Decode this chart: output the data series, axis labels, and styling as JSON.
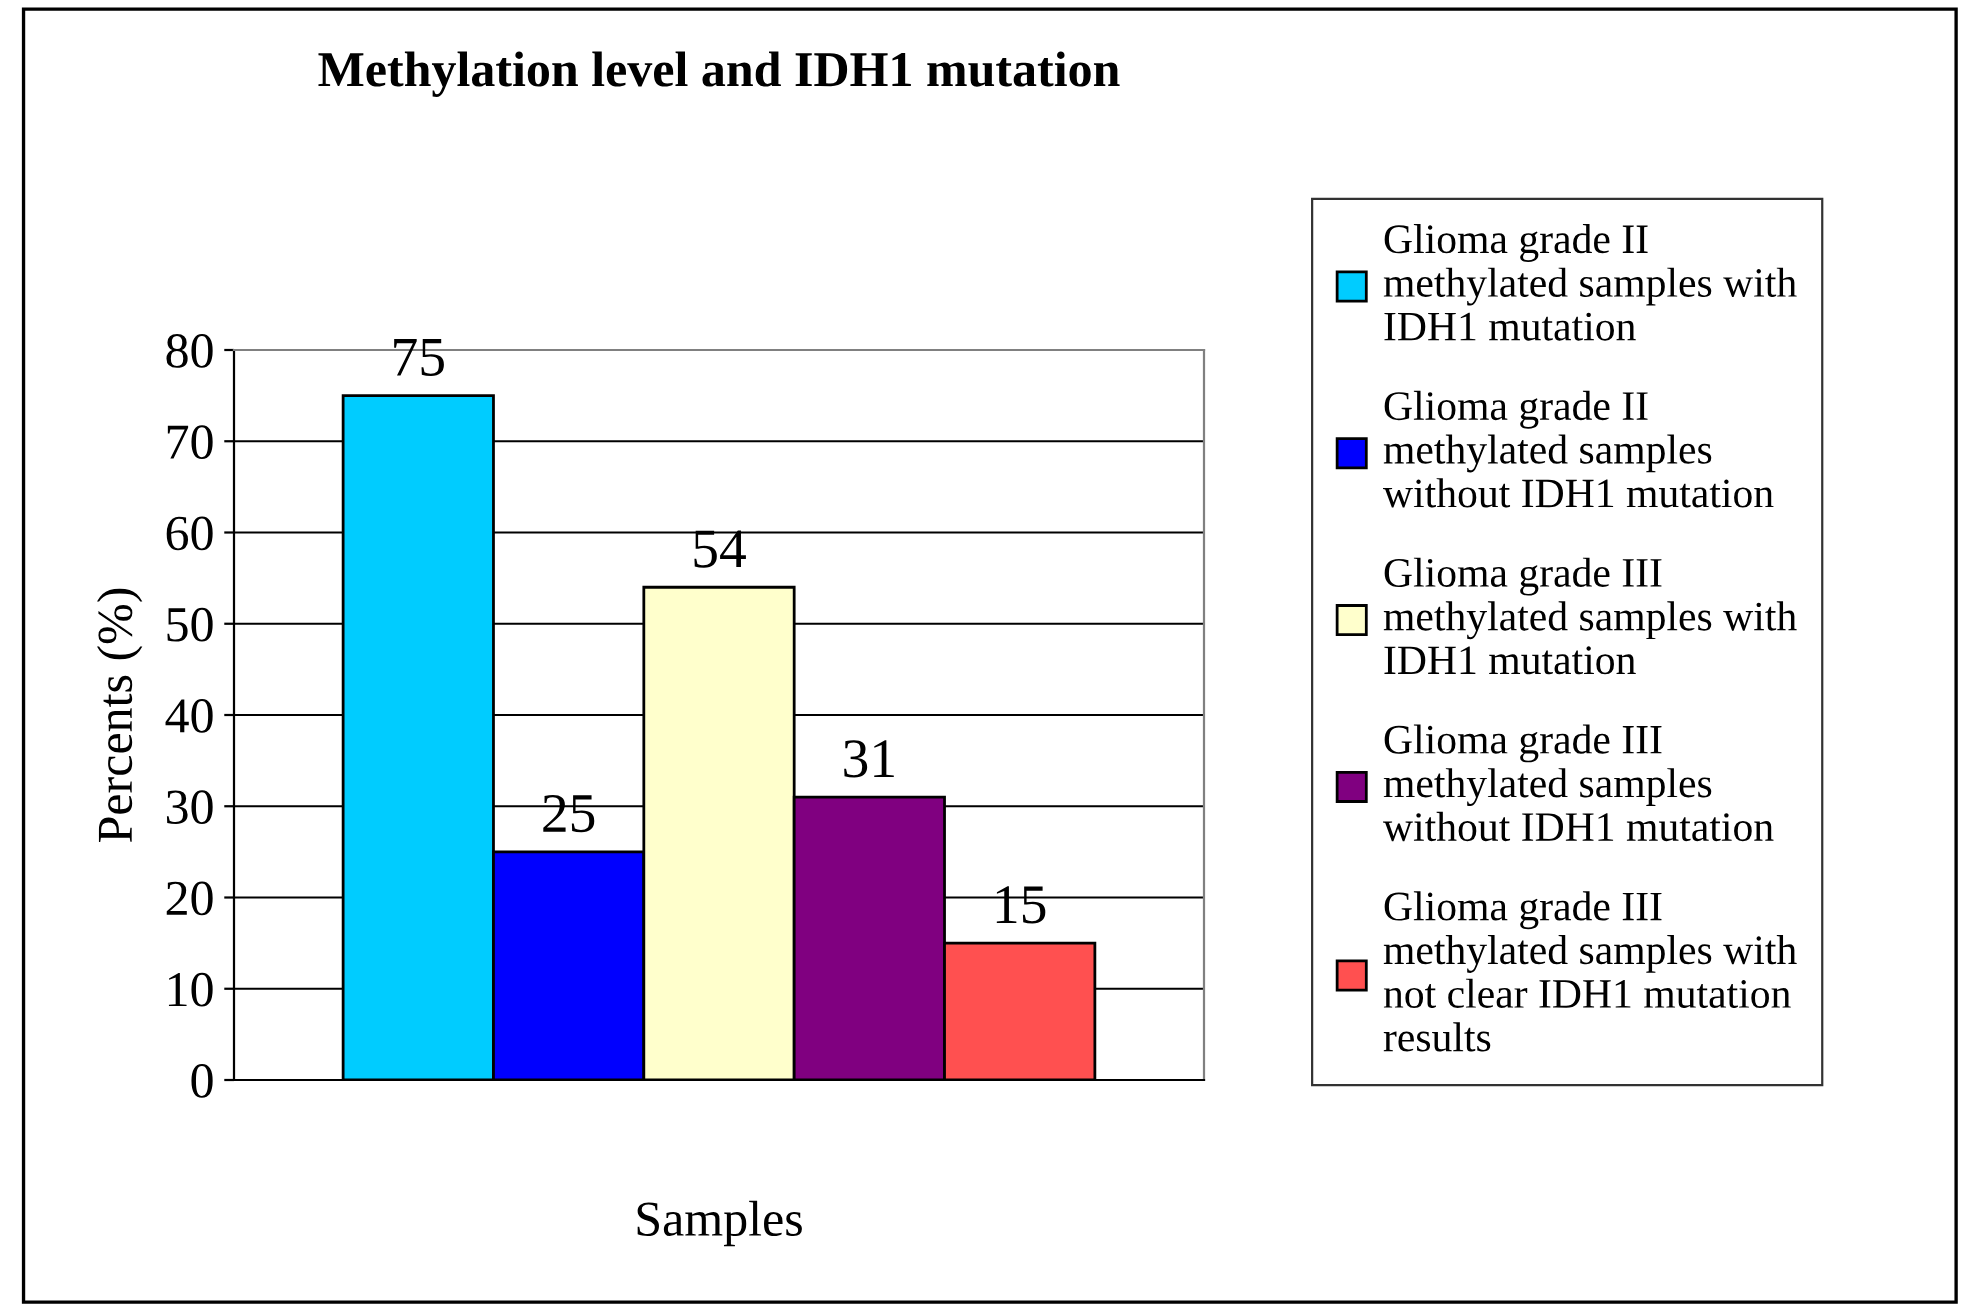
{
  "chart_data": {
    "type": "bar",
    "title": "Methylation level and IDH1 mutation",
    "xlabel": "Samples",
    "ylabel": "Percents (%)",
    "categories": [
      null
    ],
    "series": [
      {
        "name": "Glioma grade II\nmethylated samples with\nIDH1 mutation",
        "color": "#00ccff",
        "values": [
          75
        ]
      },
      {
        "name": "Glioma grade II\nmethylated samples\nwithout IDH1 mutation",
        "color": "#0000ff",
        "values": [
          25
        ]
      },
      {
        "name": "Glioma grade III\nmethylated samples with\nIDH1 mutation",
        "color": "#ffffcc",
        "values": [
          54
        ]
      },
      {
        "name": "Glioma grade III\nmethylated samples\nwithout IDH1 mutation",
        "color": "#800080",
        "values": [
          31
        ]
      },
      {
        "name": "Glioma grade III\nmethylated samples with\nnot clear IDH1 mutation\nresults",
        "color": "#ff5050",
        "values": [
          15
        ]
      }
    ],
    "ylim": [
      0,
      80
    ],
    "yticks": [
      0,
      10,
      20,
      30,
      40,
      50,
      60,
      70,
      80
    ],
    "grid": "y",
    "data_labels": true,
    "legend": "right"
  }
}
